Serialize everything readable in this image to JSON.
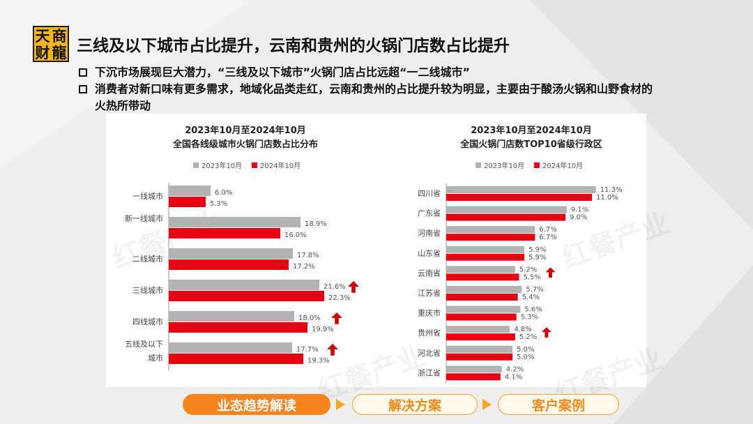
{
  "logo": {
    "chars": [
      "天",
      "商",
      "财",
      "龍"
    ]
  },
  "page_title": "三线及以下城市占比提升，云南和贵州的火锅门店数占比提升",
  "bullets": [
    "下沉市场展现巨大潜力，“三线及以下城市”火锅门店占比远超“一二线城市”",
    "消费者对新口味有更多需求，地域化品类走红，云南和贵州的占比提升较为明显，主要由于酸汤火锅和山野食材的火热所带动"
  ],
  "watermark": "红餐产业",
  "colors": {
    "series_2023": "#b3b3b3",
    "series_2024": "#e60012",
    "arrow": "#cc0000",
    "accent": "#f5841f"
  },
  "chart_data": [
    {
      "type": "bar",
      "orientation": "horizontal",
      "title_line1": "2023年10月至2024年10月",
      "title_line2": "全国各线级城市火锅门店数占比分布",
      "categories": [
        "一线城市",
        "新一线城市",
        "二线城市",
        "三线城市",
        "四线城市",
        "五线及以下城市"
      ],
      "series": [
        {
          "name": "2023年10月",
          "values": [
            6.0,
            18.9,
            17.8,
            21.6,
            18.0,
            17.7
          ]
        },
        {
          "name": "2024年10月",
          "values": [
            5.3,
            16.0,
            17.2,
            22.3,
            19.9,
            19.3
          ]
        }
      ],
      "value_suffix": "%",
      "up_arrows": [
        false,
        false,
        false,
        true,
        true,
        true
      ],
      "legend_position": "top"
    },
    {
      "type": "bar",
      "orientation": "horizontal",
      "title_line1": "2023年10月至2024年10月",
      "title_line2": "全国火锅门店数TOP10省级行政区",
      "categories": [
        "四川省",
        "广东省",
        "河南省",
        "山东省",
        "云南省",
        "江苏省",
        "重庆市",
        "贵州省",
        "河北省",
        "浙江省"
      ],
      "series": [
        {
          "name": "2023年10月",
          "values": [
            11.3,
            9.1,
            6.7,
            5.9,
            5.2,
            5.7,
            5.6,
            4.8,
            5.0,
            4.2
          ]
        },
        {
          "name": "2024年10月",
          "values": [
            11.0,
            9.0,
            6.7,
            5.9,
            5.5,
            5.4,
            5.3,
            5.2,
            5.0,
            4.1
          ]
        }
      ],
      "value_suffix": "%",
      "up_arrows": [
        false,
        false,
        false,
        false,
        true,
        false,
        false,
        true,
        false,
        false
      ],
      "legend_position": "top"
    }
  ],
  "footer": {
    "tabs": [
      {
        "label": "业态趋势解读",
        "active": true
      },
      {
        "label": "解决方案",
        "active": false
      },
      {
        "label": "客户案例",
        "active": false
      }
    ]
  }
}
